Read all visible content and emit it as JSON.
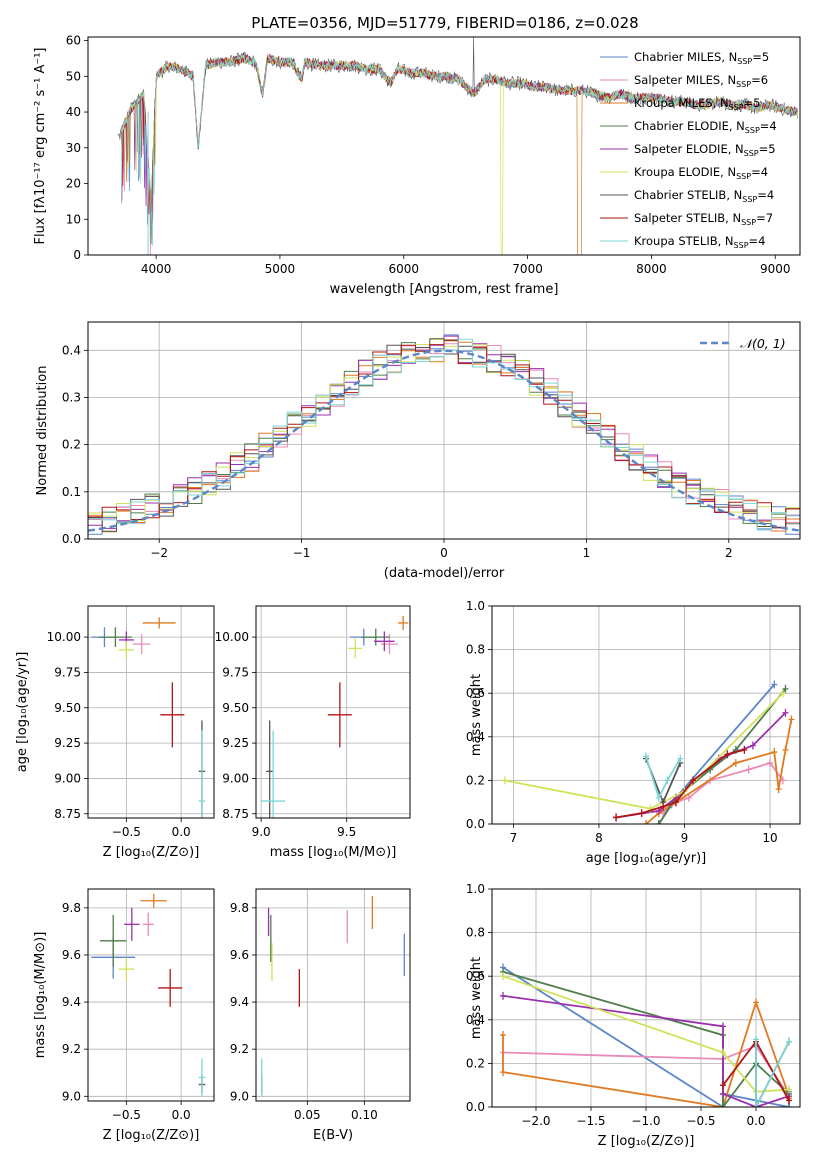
{
  "figure": {
    "title": "PLATE=0356, MJD=51779, FIBERID=0186, z=0.028"
  },
  "chart_data": [
    {
      "id": "spectrum",
      "type": "line",
      "xlabel": "wavelength [Angstrom, rest frame]",
      "ylabel": "Flux [fλ10⁻¹⁷ erg cm⁻² s⁻¹ A⁻¹]",
      "xlim": [
        3450,
        9200
      ],
      "ylim": [
        0,
        61
      ],
      "xticks": [
        4000,
        5000,
        6000,
        7000,
        8000,
        9000
      ],
      "yticks": [
        0,
        10,
        20,
        30,
        40,
        50,
        60
      ],
      "grid": false,
      "legend_position": "top-right",
      "data_x": [
        3700,
        3800,
        3900,
        3960,
        4000,
        4100,
        4200,
        4300,
        4340,
        4400,
        4500,
        4600,
        4700,
        4800,
        4861,
        4900,
        5000,
        5100,
        5175,
        5200,
        5300,
        5400,
        5500,
        5600,
        5700,
        5800,
        5893,
        5950,
        6050,
        6150,
        6250,
        6350,
        6450,
        6563,
        6650,
        6750,
        6850,
        6950,
        7050,
        7150,
        7250,
        7350,
        7450,
        7550,
        7650,
        7750,
        7850,
        7950,
        8050,
        8150,
        8250,
        8350,
        8450,
        8550,
        8650,
        8750,
        8850,
        8950,
        9050,
        9150
      ],
      "data_y": [
        33,
        41,
        45,
        14,
        50,
        53,
        52,
        50,
        30,
        53,
        54,
        54,
        55,
        54,
        45,
        55,
        54,
        54,
        49,
        54,
        53,
        53,
        53,
        53,
        52,
        52,
        48,
        52,
        51,
        51,
        50,
        50,
        49,
        45,
        49,
        49,
        48,
        48,
        47,
        47,
        46,
        46,
        46,
        45,
        44,
        45,
        44,
        44,
        44,
        43,
        43,
        42,
        42,
        43,
        42,
        42,
        41,
        42,
        41,
        40
      ],
      "series": [
        {
          "name": "Chabrier MILES, N_SSP=5",
          "legend": "Chabrier MILES, N",
          "sub": "SSP",
          "suffix": "=5",
          "color": "#5b86c9"
        },
        {
          "name": "Salpeter MILES, N_SSP=6",
          "legend": "Salpeter MILES, N",
          "sub": "SSP",
          "suffix": "=6",
          "color": "#e98ab8"
        },
        {
          "name": "Kroupa MILES, N_SSP=5",
          "legend": "Kroupa MILES, N",
          "sub": "SSP",
          "suffix": "=5",
          "color": "#e07a20"
        },
        {
          "name": "Chabrier ELODIE, N_SSP=4",
          "legend": "Chabrier ELODIE, N",
          "sub": "SSP",
          "suffix": "=4",
          "color": "#4e7d4a"
        },
        {
          "name": "Salpeter ELODIE, N_SSP=5",
          "legend": "Salpeter ELODIE, N",
          "sub": "SSP",
          "suffix": "=5",
          "color": "#9b2fae"
        },
        {
          "name": "Kroupa ELODIE, N_SSP=4",
          "legend": "Kroupa ELODIE, N",
          "sub": "SSP",
          "suffix": "=4",
          "color": "#cfe35a"
        },
        {
          "name": "Chabrier STELIB, N_SSP=4",
          "legend": "Chabrier STELIB, N",
          "sub": "SSP",
          "suffix": "=4",
          "color": "#555555"
        },
        {
          "name": "Salpeter STELIB, N_SSP=7",
          "legend": "Salpeter STELIB, N",
          "sub": "SSP",
          "suffix": "=7",
          "color": "#b01515"
        },
        {
          "name": "Kroupa STELIB, N_SSP=4",
          "legend": "Kroupa STELIB, N",
          "sub": "SSP",
          "suffix": "=4",
          "color": "#7fd6d6"
        }
      ]
    },
    {
      "id": "residuals",
      "type": "bar",
      "xlabel": "(data-model)/error",
      "ylabel": "Normed distribution",
      "xlim": [
        -2.5,
        2.5
      ],
      "ylim": [
        0,
        0.46
      ],
      "xticks": [
        -2,
        -1,
        0,
        1,
        2
      ],
      "yticks": [
        0.0,
        0.1,
        0.2,
        0.3,
        0.4
      ],
      "grid": true,
      "legend": "𝒩(0, 1)",
      "legend_position": "top-right",
      "bin_width": 0.1,
      "gaussian": {
        "mean": 0,
        "sigma": 1,
        "color": "#5b86c9"
      }
    },
    {
      "id": "age-vs-Z",
      "type": "scatter",
      "xlabel": "Z [log₁₀(Z/Z⊙)]",
      "ylabel": "age  [log₁₀(age/yr)]",
      "xlim": [
        -0.85,
        0.3
      ],
      "ylim": [
        8.72,
        10.22
      ],
      "xticks": [
        -0.5,
        0.0
      ],
      "yticks": [
        8.75,
        9.0,
        9.25,
        9.5,
        9.75,
        10.0
      ],
      "grid": true,
      "points": [
        {
          "x": -0.7,
          "y": 10.0,
          "xerr": 0.12,
          "yerr": 0.07,
          "color": "#5b86c9"
        },
        {
          "x": -0.36,
          "y": 9.95,
          "xerr": 0.08,
          "yerr": 0.07,
          "color": "#e98ab8"
        },
        {
          "x": -0.2,
          "y": 10.1,
          "xerr": 0.15,
          "yerr": 0.04,
          "color": "#e07a20"
        },
        {
          "x": -0.6,
          "y": 10.0,
          "xerr": 0.15,
          "yerr": 0.07,
          "color": "#4e7d4a"
        },
        {
          "x": -0.5,
          "y": 9.98,
          "xerr": 0.07,
          "yerr": 0.06,
          "color": "#9b2fae"
        },
        {
          "x": -0.5,
          "y": 9.91,
          "xerr": 0.07,
          "yerr": 0.06,
          "color": "#cfe35a"
        },
        {
          "x": 0.19,
          "y": 9.05,
          "xerr": 0.03,
          "yerr": 0.36,
          "color": "#555555"
        },
        {
          "x": -0.08,
          "y": 9.45,
          "xerr": 0.11,
          "yerr": 0.23,
          "color": "#b01515"
        },
        {
          "x": 0.19,
          "y": 8.84,
          "xerr": 0.03,
          "yerr": 0.5,
          "color": "#7fd6d6"
        }
      ]
    },
    {
      "id": "age-vs-mass",
      "type": "scatter",
      "xlabel": "mass [log₁₀(M/M⊙)]",
      "ylabel": "",
      "xlim": [
        8.97,
        9.87
      ],
      "ylim": [
        8.72,
        10.22
      ],
      "xticks": [
        9.0,
        9.5
      ],
      "yticks": [
        8.75,
        9.0,
        9.25,
        9.5,
        9.75,
        10.0
      ],
      "grid": true,
      "points": [
        {
          "x": 9.6,
          "y": 10.0,
          "xerr": 0.08,
          "yerr": 0.06,
          "color": "#5b86c9"
        },
        {
          "x": 9.75,
          "y": 9.95,
          "xerr": 0.05,
          "yerr": 0.07,
          "color": "#e98ab8"
        },
        {
          "x": 9.83,
          "y": 10.1,
          "xerr": 0.03,
          "yerr": 0.05,
          "color": "#e07a20"
        },
        {
          "x": 9.67,
          "y": 10.0,
          "xerr": 0.08,
          "yerr": 0.06,
          "color": "#4e7d4a"
        },
        {
          "x": 9.72,
          "y": 9.97,
          "xerr": 0.06,
          "yerr": 0.07,
          "color": "#9b2fae"
        },
        {
          "x": 9.55,
          "y": 9.92,
          "xerr": 0.04,
          "yerr": 0.07,
          "color": "#cfe35a"
        },
        {
          "x": 9.05,
          "y": 9.05,
          "xerr": 0.02,
          "yerr": 0.36,
          "color": "#555555"
        },
        {
          "x": 9.46,
          "y": 9.45,
          "xerr": 0.07,
          "yerr": 0.23,
          "color": "#b01515"
        },
        {
          "x": 9.07,
          "y": 8.84,
          "xerr": 0.07,
          "yerr": 0.5,
          "color": "#7fd6d6"
        }
      ]
    },
    {
      "id": "weight-vs-age",
      "type": "line",
      "xlabel": "age  [log₁₀(age/yr)]",
      "ylabel": "mass weight",
      "xlim": [
        6.75,
        10.35
      ],
      "ylim": [
        0,
        1.0
      ],
      "xticks": [
        7,
        8,
        9,
        10
      ],
      "yticks": [
        0.0,
        0.2,
        0.4,
        0.6,
        0.8,
        1.0
      ],
      "grid": true,
      "series": [
        {
          "color": "#5b86c9",
          "x": [
            8.7,
            8.85,
            8.9,
            10.05
          ],
          "y": [
            0.0,
            0.09,
            0.12,
            0.64
          ]
        },
        {
          "color": "#e98ab8",
          "x": [
            8.75,
            8.9,
            9.05,
            9.3,
            9.75,
            10.0,
            10.15
          ],
          "y": [
            0.05,
            0.1,
            0.12,
            0.2,
            0.25,
            0.28,
            0.2
          ]
        },
        {
          "color": "#e07a20",
          "x": [
            8.55,
            8.7,
            8.9,
            9.6,
            10.05,
            10.1,
            10.18,
            10.25
          ],
          "y": [
            0.0,
            0.05,
            0.1,
            0.28,
            0.33,
            0.16,
            0.34,
            0.48
          ]
        },
        {
          "color": "#4e7d4a",
          "x": [
            8.7,
            8.9,
            9.3,
            9.6,
            10.18
          ],
          "y": [
            0.0,
            0.12,
            0.25,
            0.34,
            0.62
          ]
        },
        {
          "color": "#9b2fae",
          "x": [
            8.2,
            8.7,
            8.9,
            9.4,
            9.8,
            10.18
          ],
          "y": [
            0.03,
            0.06,
            0.12,
            0.3,
            0.36,
            0.51
          ]
        },
        {
          "color": "#cfe35a",
          "x": [
            6.9,
            8.6,
            9.0,
            10.15
          ],
          "y": [
            0.2,
            0.07,
            0.15,
            0.6
          ]
        },
        {
          "color": "#555555",
          "x": [
            8.55,
            8.75,
            8.95
          ],
          "y": [
            0.3,
            0.1,
            0.28
          ]
        },
        {
          "color": "#b01515",
          "x": [
            8.2,
            8.5,
            8.75,
            8.9,
            9.1,
            9.5,
            9.7
          ],
          "y": [
            0.03,
            0.05,
            0.08,
            0.1,
            0.2,
            0.32,
            0.34
          ]
        },
        {
          "color": "#7fd6d6",
          "x": [
            8.55,
            8.7,
            8.8,
            8.95
          ],
          "y": [
            0.31,
            0.12,
            0.2,
            0.3
          ]
        }
      ]
    },
    {
      "id": "mass-vs-Z",
      "type": "scatter",
      "xlabel": "Z [log₁₀(Z/Z⊙)]",
      "ylabel": "mass [log₁₀(M/M⊙)]",
      "xlim": [
        -0.85,
        0.3
      ],
      "ylim": [
        8.98,
        9.88
      ],
      "xticks": [
        -0.5,
        0.0
      ],
      "yticks": [
        9.0,
        9.2,
        9.4,
        9.6,
        9.8
      ],
      "grid": true,
      "points": [
        {
          "x": -0.62,
          "y": 9.59,
          "xerr": 0.2,
          "yerr": 0.09,
          "color": "#5b86c9"
        },
        {
          "x": -0.3,
          "y": 9.73,
          "xerr": 0.05,
          "yerr": 0.05,
          "color": "#e98ab8"
        },
        {
          "x": -0.25,
          "y": 9.83,
          "xerr": 0.12,
          "yerr": 0.03,
          "color": "#e07a20"
        },
        {
          "x": -0.62,
          "y": 9.66,
          "xerr": 0.12,
          "yerr": 0.11,
          "color": "#4e7d4a"
        },
        {
          "x": -0.45,
          "y": 9.73,
          "xerr": 0.07,
          "yerr": 0.07,
          "color": "#9b2fae"
        },
        {
          "x": -0.5,
          "y": 9.54,
          "xerr": 0.07,
          "yerr": 0.05,
          "color": "#cfe35a"
        },
        {
          "x": 0.19,
          "y": 9.05,
          "xerr": 0.03,
          "yerr": 0.04,
          "color": "#555555"
        },
        {
          "x": -0.1,
          "y": 9.46,
          "xerr": 0.11,
          "yerr": 0.08,
          "color": "#b01515"
        },
        {
          "x": 0.19,
          "y": 9.08,
          "xerr": 0.03,
          "yerr": 0.08,
          "color": "#7fd6d6"
        }
      ]
    },
    {
      "id": "mass-vs-EBV",
      "type": "scatter",
      "xlabel": "E(B-V)",
      "ylabel": "",
      "xlim": [
        0.005,
        0.14
      ],
      "ylim": [
        8.98,
        9.88
      ],
      "xticks": [
        0.05,
        0.1
      ],
      "yticks": [
        9.0,
        9.2,
        9.4,
        9.6,
        9.8
      ],
      "grid": true,
      "points": [
        {
          "x": 0.135,
          "y": 9.6,
          "yerr": 0.09,
          "color": "#5b86c9"
        },
        {
          "x": 0.085,
          "y": 9.72,
          "yerr": 0.07,
          "color": "#e98ab8"
        },
        {
          "x": 0.107,
          "y": 9.78,
          "yerr": 0.07,
          "color": "#e07a20"
        },
        {
          "x": 0.018,
          "y": 9.67,
          "yerr": 0.1,
          "color": "#4e7d4a"
        },
        {
          "x": 0.016,
          "y": 9.74,
          "yerr": 0.06,
          "color": "#9b2fae"
        },
        {
          "x": 0.019,
          "y": 9.57,
          "yerr": 0.08,
          "color": "#cfe35a"
        },
        {
          "x": 0.01,
          "y": 9.05,
          "yerr": 0.04,
          "color": "#555555"
        },
        {
          "x": 0.043,
          "y": 9.46,
          "yerr": 0.08,
          "color": "#b01515"
        },
        {
          "x": 0.01,
          "y": 9.08,
          "yerr": 0.08,
          "color": "#7fd6d6"
        }
      ]
    },
    {
      "id": "weight-vs-Z",
      "type": "line",
      "xlabel": "Z [log₁₀(Z/Z⊙)]",
      "ylabel": "mass weight",
      "xlim": [
        -2.4,
        0.4
      ],
      "ylim": [
        0,
        1.0
      ],
      "xticks": [
        -2.0,
        -1.5,
        -1.0,
        -0.5,
        0.0
      ],
      "yticks": [
        0.0,
        0.2,
        0.4,
        0.6,
        0.8,
        1.0
      ],
      "grid": true,
      "series": [
        {
          "color": "#5b86c9",
          "x": [
            -2.3,
            -0.3,
            -0.3,
            0.3,
            0.3
          ],
          "y": [
            0.64,
            0.0,
            0.06,
            0.0,
            0.07
          ]
        },
        {
          "color": "#e98ab8",
          "x": [
            -2.3,
            -0.3,
            0.0,
            0.3
          ],
          "y": [
            0.25,
            0.22,
            0.28,
            0.05
          ]
        },
        {
          "color": "#e07a20",
          "x": [
            -2.3,
            -2.3,
            -0.3,
            0.0,
            0.3,
            0.3
          ],
          "y": [
            0.33,
            0.16,
            0.0,
            0.48,
            0.05,
            0.04
          ]
        },
        {
          "color": "#4e7d4a",
          "x": [
            -2.3,
            -0.3,
            -0.3,
            0.0,
            0.3
          ],
          "y": [
            0.62,
            0.33,
            0.0,
            0.2,
            0.06
          ]
        },
        {
          "color": "#9b2fae",
          "x": [
            -2.3,
            -0.3,
            -0.3,
            0.0,
            0.3
          ],
          "y": [
            0.51,
            0.37,
            0.06,
            0.0,
            0.05
          ]
        },
        {
          "color": "#cfe35a",
          "x": [
            -2.3,
            -0.3,
            0.0,
            0.3
          ],
          "y": [
            0.6,
            0.25,
            0.07,
            0.08
          ]
        },
        {
          "color": "#555555",
          "x": [
            0.0,
            0.0,
            0.3
          ],
          "y": [
            0.28,
            0.0,
            0.3
          ]
        },
        {
          "color": "#b01515",
          "x": [
            -0.3,
            0.0,
            0.3
          ],
          "y": [
            0.1,
            0.3,
            0.03
          ]
        },
        {
          "color": "#7fd6d6",
          "x": [
            0.0,
            0.0,
            0.3
          ],
          "y": [
            0.31,
            0.0,
            0.3
          ]
        }
      ]
    }
  ]
}
